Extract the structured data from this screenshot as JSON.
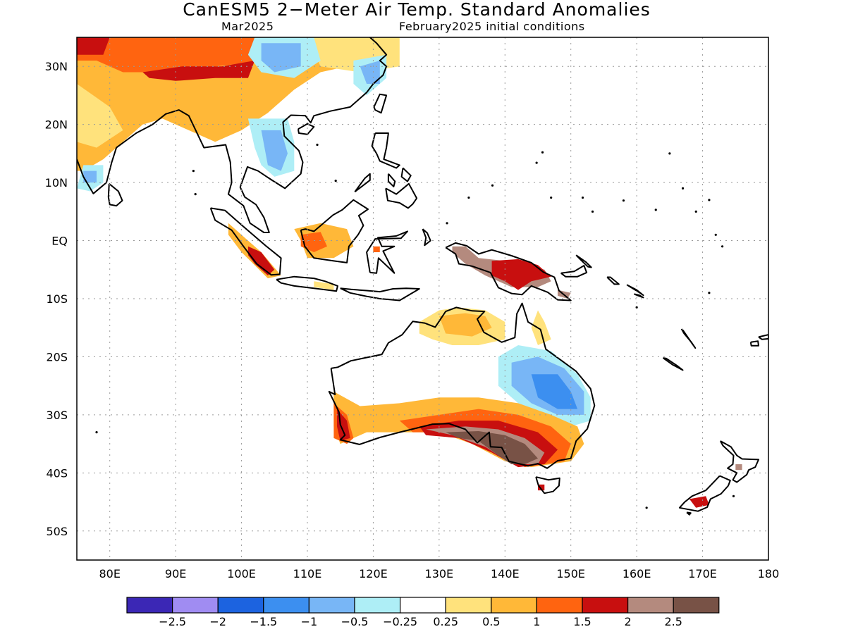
{
  "title": "CanESM5 2−Meter Air Temp. Standard Anomalies",
  "subtitle_left": "Mar2025",
  "subtitle_right": "February2025 initial conditions",
  "map": {
    "lon_range": [
      75,
      180
    ],
    "lat_range": [
      -55,
      35
    ],
    "lat_ticks": [
      {
        "value": 30,
        "label": "30N"
      },
      {
        "value": 20,
        "label": "20N"
      },
      {
        "value": 10,
        "label": "10N"
      },
      {
        "value": 0,
        "label": "EQ"
      },
      {
        "value": -10,
        "label": "10S"
      },
      {
        "value": -20,
        "label": "20S"
      },
      {
        "value": -30,
        "label": "30S"
      },
      {
        "value": -40,
        "label": "40S"
      },
      {
        "value": -50,
        "label": "50S"
      }
    ],
    "lon_ticks": [
      {
        "value": 80,
        "label": "80E"
      },
      {
        "value": 90,
        "label": "90E"
      },
      {
        "value": 100,
        "label": "100E"
      },
      {
        "value": 110,
        "label": "110E"
      },
      {
        "value": 120,
        "label": "120E"
      },
      {
        "value": 130,
        "label": "130E"
      },
      {
        "value": 140,
        "label": "140E"
      },
      {
        "value": 150,
        "label": "150E"
      },
      {
        "value": 160,
        "label": "160E"
      },
      {
        "value": 170,
        "label": "170E"
      },
      {
        "value": 180,
        "label": "180"
      }
    ],
    "grid": "dotted"
  },
  "colorbar": {
    "colors": [
      "#3b27b5",
      "#a08cf2",
      "#1c63e0",
      "#3c8ff0",
      "#78b6f6",
      "#aeeef6",
      "#ffffff",
      "#ffe27c",
      "#ffb838",
      "#ff6410",
      "#c80f0f",
      "#b48a7e",
      "#785246"
    ],
    "labels": [
      "−2.5",
      "−2",
      "−1.5",
      "−1",
      "−0.5",
      "−0.25",
      "0.25",
      "0.5",
      "1",
      "1.5",
      "2",
      "2.5"
    ]
  }
}
